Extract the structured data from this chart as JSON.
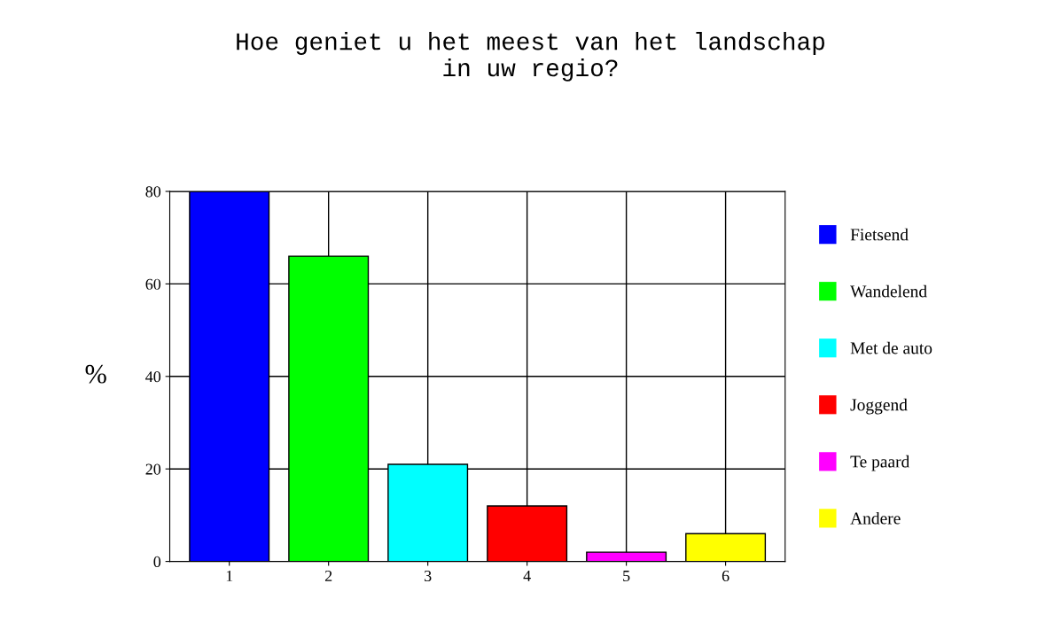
{
  "chart_data": {
    "type": "bar",
    "title": "Hoe geniet u het meest van het landschap\nin uw regio?",
    "ylabel": "%",
    "categories": [
      "1",
      "2",
      "3",
      "4",
      "5",
      "6"
    ],
    "series": [
      {
        "name": "Fietsend",
        "color": "#0000ff",
        "values": [
          80,
          null,
          null,
          null,
          null,
          null
        ]
      },
      {
        "name": "Wandelend",
        "color": "#00ff00",
        "values": [
          null,
          66,
          null,
          null,
          null,
          null
        ]
      },
      {
        "name": "Met de auto",
        "color": "#00ffff",
        "values": [
          null,
          null,
          21,
          null,
          null,
          null
        ]
      },
      {
        "name": "Joggend",
        "color": "#ff0000",
        "values": [
          null,
          null,
          null,
          12,
          null,
          null
        ]
      },
      {
        "name": "Te paard",
        "color": "#ff00ff",
        "values": [
          null,
          null,
          null,
          null,
          2,
          null
        ]
      },
      {
        "name": "Andere",
        "color": "#ffff00",
        "values": [
          null,
          null,
          null,
          null,
          null,
          6
        ]
      }
    ],
    "ylim": [
      0,
      80
    ],
    "yticks": [
      0,
      20,
      40,
      60,
      80
    ],
    "grid": true,
    "legend": "right"
  }
}
